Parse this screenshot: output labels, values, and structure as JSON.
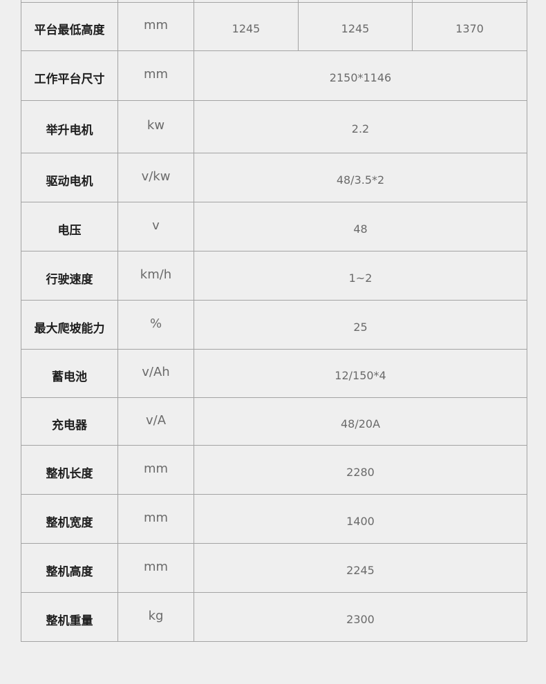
{
  "spec_table": {
    "partial_row": {
      "label": "",
      "unit": "",
      "values": [
        "",
        "",
        ""
      ]
    },
    "min_platform_height": {
      "label": "平台最低高度",
      "unit": "mm",
      "values": [
        "1245",
        "1245",
        "1370"
      ]
    },
    "rows": [
      {
        "label": "工作平台尺寸",
        "unit": "mm",
        "value": "2150*1146"
      },
      {
        "label": "举升电机",
        "unit": "kw",
        "value": "2.2"
      },
      {
        "label": "驱动电机",
        "unit": "v/kw",
        "value": "48/3.5*2"
      },
      {
        "label": "电压",
        "unit": "v",
        "value": "48"
      },
      {
        "label": "行驶速度",
        "unit": "km/h",
        "value": "1~2"
      },
      {
        "label": "最大爬坡能力",
        "unit": "%",
        "value": "25"
      },
      {
        "label": "蓄电池",
        "unit": "v/Ah",
        "value": "12/150*4"
      },
      {
        "label": "充电器",
        "unit": "v/A",
        "value": "48/20A"
      },
      {
        "label": "整机长度",
        "unit": "mm",
        "value": "2280"
      },
      {
        "label": "整机宽度",
        "unit": "mm",
        "value": "1400"
      },
      {
        "label": "整机高度",
        "unit": "mm",
        "value": "2245"
      },
      {
        "label": "整机重量",
        "unit": "kg",
        "value": "2300"
      }
    ]
  }
}
